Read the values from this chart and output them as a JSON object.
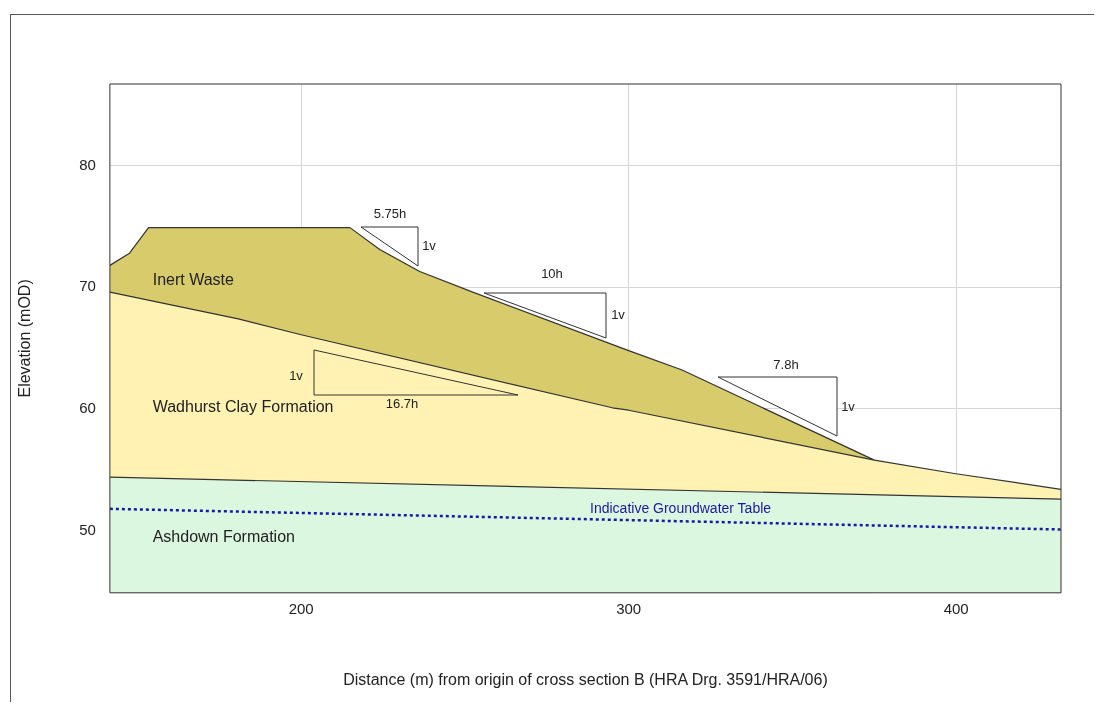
{
  "chart_data": {
    "type": "area",
    "xlabel": "Distance (m) from origin of cross section B (HRA Drg. 3591/HRA/06)",
    "ylabel": "Elevation (mOD)",
    "xlim": [
      141.6,
      432
    ],
    "ylim": [
      44.9,
      86.7
    ],
    "xticks": [
      200,
      300,
      400
    ],
    "yticks": [
      50,
      60,
      70,
      80
    ],
    "grid": true,
    "legend": false,
    "marker": "none",
    "series": [
      {
        "name": "Inert Waste",
        "color": "#d8cb6c",
        "x": [
          141.6,
          147.6,
          153.4,
          214.9,
          224,
          236.2,
          252.4,
          300,
          316.3,
          375
        ],
        "values": [
          71.8,
          72.8,
          74.9,
          74.9,
          73.1,
          71.3,
          69.6,
          64.8,
          63.2,
          55.8
        ]
      },
      {
        "name": "Wadhurst Clay Formation",
        "color": "#fff2b3",
        "x": [
          141.6,
          180.8,
          200,
          295,
          300,
          375,
          399.4,
          432
        ],
        "values": [
          69.6,
          67.4,
          66.1,
          60.1,
          59.9,
          55.8,
          54.7,
          53.4
        ]
      },
      {
        "name": "Ashdown Formation",
        "color": "#dcf7e0",
        "x": [
          141.6,
          432
        ],
        "values": [
          54.4,
          52.6
        ]
      },
      {
        "name": "Indicative Groundwater Table",
        "type": "line",
        "line_style": "dotted",
        "color": "#1a1aa0",
        "x": [
          141.6,
          432
        ],
        "values": [
          51.8,
          50.1
        ]
      }
    ],
    "annotations": [
      "5.75h",
      "1v",
      "10h",
      "1v",
      "1v",
      "16.7h",
      "7.8h",
      "1v"
    ]
  }
}
